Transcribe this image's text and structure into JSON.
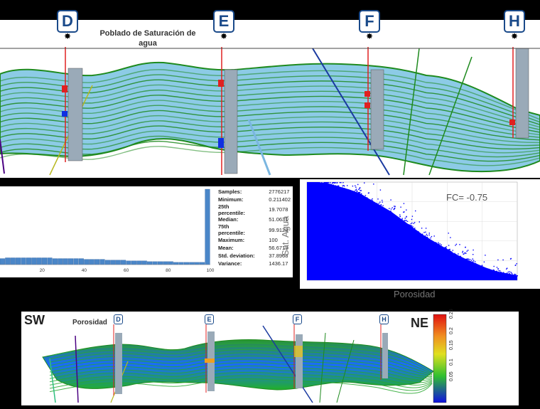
{
  "top_section": {
    "title": "Poblado de Saturación de agua",
    "wells": [
      "D",
      "E",
      "F",
      "H"
    ]
  },
  "histogram": {
    "ticks": [
      "20",
      "40",
      "60",
      "80",
      "100"
    ],
    "stats": [
      {
        "label": "Samples:",
        "value": "2776217"
      },
      {
        "label": "Minimum:",
        "value": "0.211402"
      },
      {
        "label": "25th percentile:",
        "value": "19.7078"
      },
      {
        "label": "Median:",
        "value": "51.0631"
      },
      {
        "label": "75th percentile:",
        "value": "99.9128"
      },
      {
        "label": "Maximum:",
        "value": "100"
      },
      {
        "label": "Mean:",
        "value": "56.6713"
      },
      {
        "label": "Std. deviation:",
        "value": "37.8968"
      },
      {
        "label": "Variance:",
        "value": "1436.17"
      }
    ]
  },
  "scatter": {
    "ylabel": "Sat. Agua",
    "xlabel": "Porosidad",
    "annotation": "FC= -0.75",
    "point_color": "#0000ff"
  },
  "bottom_section": {
    "left_label": "SW",
    "right_label": "NE",
    "title": "Porosidad",
    "wells": [
      "D",
      "E",
      "F",
      "H"
    ],
    "colorbar_ticks": [
      "0.25",
      "0.2",
      "0.15",
      "0.1",
      "0.05"
    ]
  },
  "chart_data": [
    {
      "type": "bar",
      "title": "",
      "xlabel": "",
      "ylabel": "",
      "xlim": [
        0,
        100
      ],
      "x_ticks": [
        20,
        40,
        60,
        80,
        100
      ],
      "note": "Histogram of water saturation",
      "categories": [
        "0",
        "2.5",
        "5",
        "7.5",
        "10",
        "12.5",
        "15",
        "17.5",
        "20",
        "22.5",
        "25",
        "27.5",
        "30",
        "32.5",
        "35",
        "37.5",
        "40",
        "42.5",
        "45",
        "47.5",
        "50",
        "52.5",
        "55",
        "57.5",
        "60",
        "62.5",
        "65",
        "67.5",
        "70",
        "72.5",
        "75",
        "77.5",
        "80",
        "82.5",
        "85",
        "87.5",
        "90",
        "92.5",
        "95",
        "97.5"
      ],
      "values": [
        8,
        9,
        9,
        9,
        9,
        9,
        9,
        9,
        9,
        9,
        8,
        8,
        8,
        8,
        8,
        8,
        7,
        7,
        7,
        7,
        6,
        6,
        6,
        6,
        5,
        5,
        5,
        5,
        4,
        4,
        4,
        4,
        4,
        3,
        3,
        3,
        3,
        3,
        3,
        100
      ]
    },
    {
      "type": "scatter",
      "title": "",
      "xlabel": "Porosidad",
      "ylabel": "Sat. Agua",
      "annotation": "FC= -0.75",
      "xlim": [
        0,
        0.25
      ],
      "ylim": [
        0,
        100
      ],
      "trend": [
        {
          "x": 0.02,
          "y": 100
        },
        {
          "x": 0.06,
          "y": 90
        },
        {
          "x": 0.1,
          "y": 70
        },
        {
          "x": 0.14,
          "y": 45
        },
        {
          "x": 0.18,
          "y": 25
        },
        {
          "x": 0.22,
          "y": 10
        },
        {
          "x": 0.25,
          "y": 5
        }
      ]
    }
  ]
}
